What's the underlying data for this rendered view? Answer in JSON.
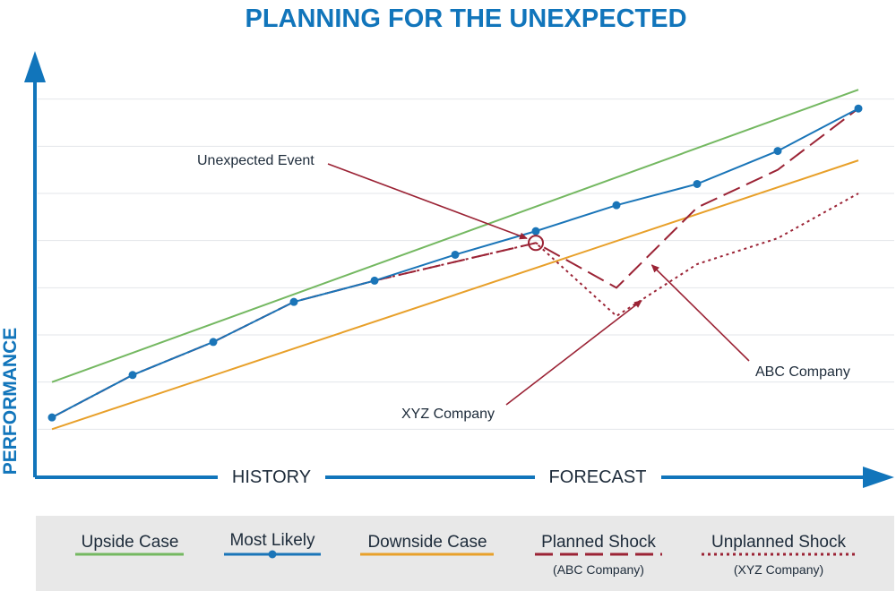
{
  "chart_data": {
    "type": "line",
    "title": "PLANNING FOR THE UNEXPECTED",
    "ylabel": "PERFORMANCE",
    "x_sections": [
      "HISTORY",
      "FORECAST"
    ],
    "x": [
      0,
      1,
      2,
      3,
      4,
      5,
      6,
      7,
      8,
      9,
      10
    ],
    "ylim": [
      0,
      9
    ],
    "grid": true,
    "colors": {
      "upside": "#74b861",
      "likely": "#1a75b8",
      "downside": "#e8a02a",
      "shock": "#9b2335",
      "axis": "#1175bb",
      "grid": "#e3e6ea",
      "legend_bg": "#e8e8e8"
    },
    "series": [
      {
        "key": "upside",
        "name": "Upside Case",
        "points": [
          [
            0,
            2.0
          ],
          [
            10,
            8.2
          ]
        ]
      },
      {
        "key": "likely",
        "name": "Most Likely",
        "markers": true,
        "points": [
          [
            0,
            1.25
          ],
          [
            1,
            2.15
          ],
          [
            2,
            2.85
          ],
          [
            3,
            3.7
          ],
          [
            4,
            4.15
          ],
          [
            5,
            4.7
          ],
          [
            6,
            5.2
          ],
          [
            7,
            5.75
          ],
          [
            8,
            6.2
          ],
          [
            9,
            6.9
          ],
          [
            10,
            7.8
          ]
        ]
      },
      {
        "key": "downside",
        "name": "Downside Case",
        "points": [
          [
            0,
            1.0
          ],
          [
            10,
            6.7
          ]
        ]
      },
      {
        "key": "abc",
        "name": "Planned Shock",
        "sub": "(ABC Company)",
        "style": "dashed",
        "points": [
          [
            0,
            1.25
          ],
          [
            1,
            2.15
          ],
          [
            2,
            2.85
          ],
          [
            3,
            3.7
          ],
          [
            4,
            4.15
          ],
          [
            5,
            4.55
          ],
          [
            6,
            4.95
          ],
          [
            7,
            4.0
          ],
          [
            8,
            5.7
          ],
          [
            9,
            6.5
          ],
          [
            10,
            7.8
          ]
        ]
      },
      {
        "key": "xyz",
        "name": "Unplanned Shock",
        "sub": "(XYZ Company)",
        "style": "dotted",
        "points": [
          [
            0,
            1.25
          ],
          [
            1,
            2.15
          ],
          [
            2,
            2.85
          ],
          [
            3,
            3.7
          ],
          [
            4,
            4.15
          ],
          [
            5,
            4.55
          ],
          [
            6,
            4.95
          ],
          [
            7,
            3.4
          ],
          [
            8,
            4.5
          ],
          [
            9,
            5.05
          ],
          [
            10,
            6.0
          ]
        ]
      }
    ],
    "annotations": [
      {
        "key": "event",
        "text": "Unexpected Event"
      },
      {
        "key": "xyz",
        "text": "XYZ Company"
      },
      {
        "key": "abc",
        "text": "ABC Company"
      }
    ]
  }
}
